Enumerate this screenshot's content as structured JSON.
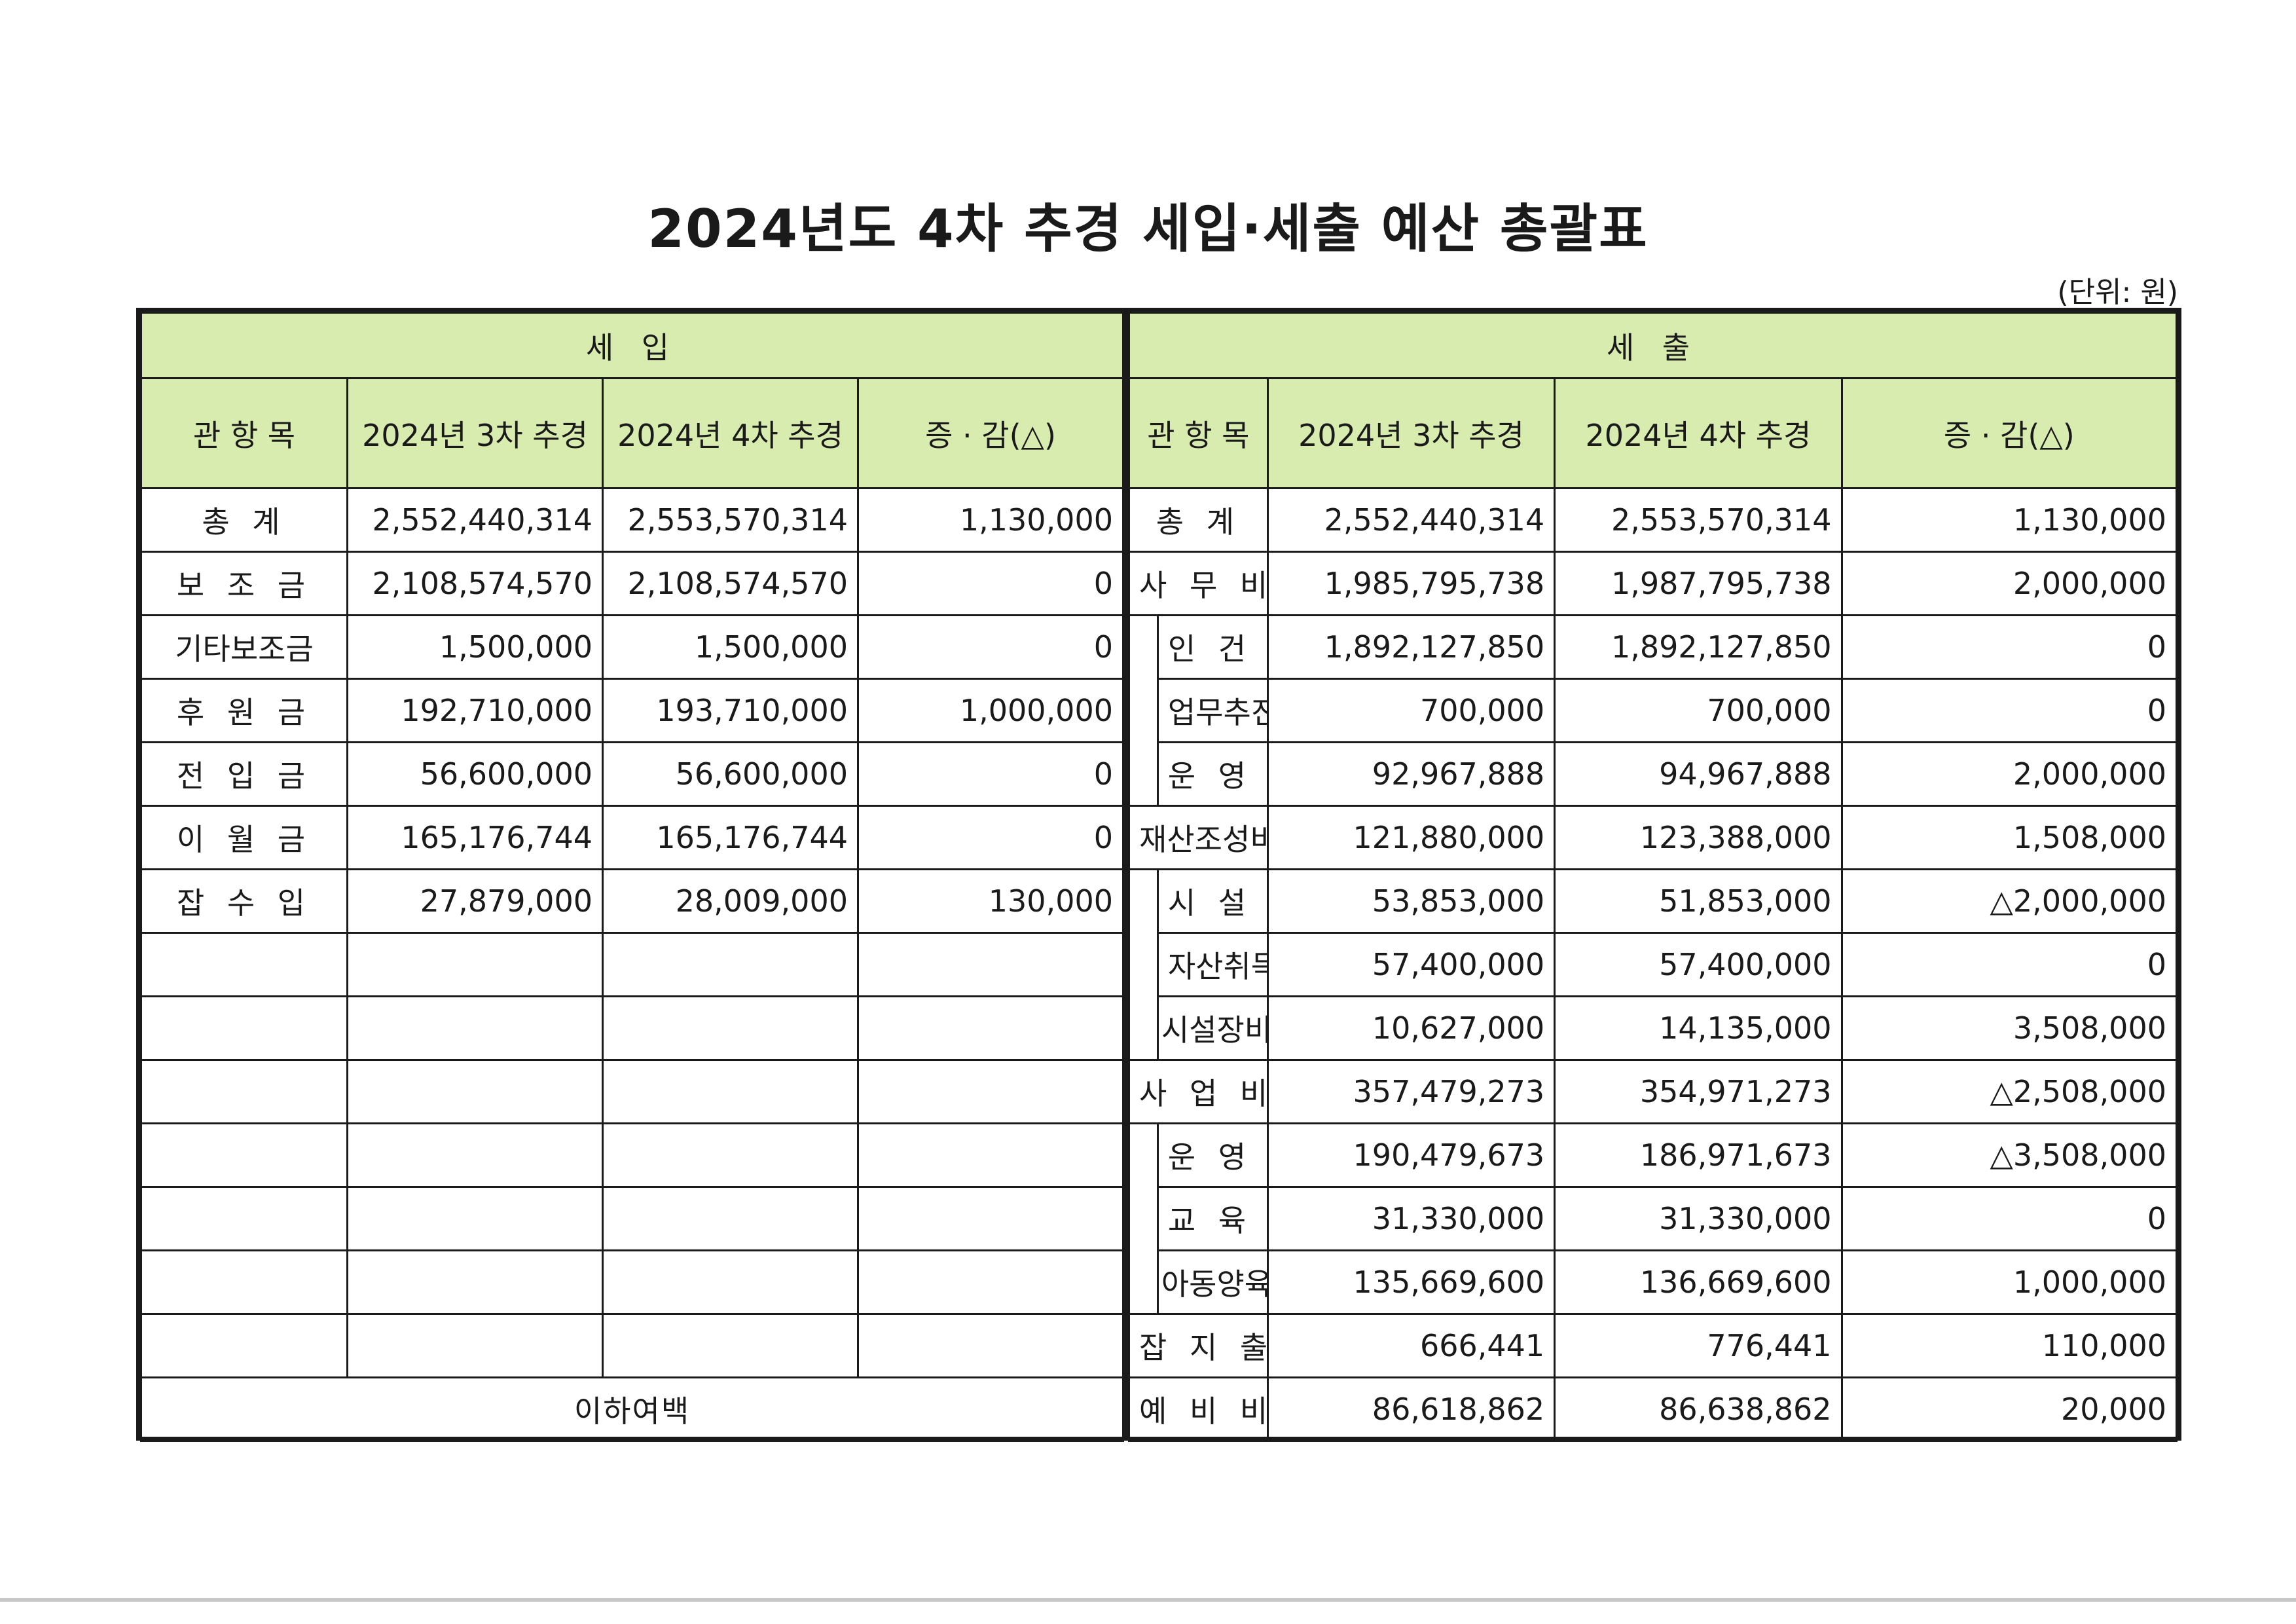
{
  "title": "2024년도 4차 추경 세입·세출 예산 총괄표",
  "unit": "(단위: 원)",
  "revenue": {
    "group_label": "세 입",
    "headers": [
      "관 항 목",
      "2024년 3차 추경",
      "2024년 4차 추경",
      "증 · 감(△)"
    ],
    "rows": [
      {
        "name": "총 계",
        "prev": "2,552,440,314",
        "curr": "2,553,570,314",
        "diff": "1,130,000"
      },
      {
        "name": "보 조 금",
        "prev": "2,108,574,570",
        "curr": "2,108,574,570",
        "diff": "0"
      },
      {
        "name": "기타보조금",
        "prev": "1,500,000",
        "curr": "1,500,000",
        "diff": "0"
      },
      {
        "name": "후 원 금",
        "prev": "192,710,000",
        "curr": "193,710,000",
        "diff": "1,000,000"
      },
      {
        "name": "전 입 금",
        "prev": "56,600,000",
        "curr": "56,600,000",
        "diff": "0"
      },
      {
        "name": "이 월 금",
        "prev": "165,176,744",
        "curr": "165,176,744",
        "diff": "0"
      },
      {
        "name": "잡 수 입",
        "prev": "27,879,000",
        "curr": "28,009,000",
        "diff": "130,000"
      }
    ],
    "footer": "이하여백"
  },
  "expenditure": {
    "group_label": "세 출",
    "headers": [
      "관 항 목",
      "2024년 3차 추경",
      "2024년 4차 추경",
      "증 · 감(△)"
    ],
    "rows": [
      {
        "name": "총 계",
        "prev": "2,552,440,314",
        "curr": "2,553,570,314",
        "diff": "1,130,000"
      },
      {
        "name": "사 무 비",
        "prev": "1,985,795,738",
        "curr": "1,987,795,738",
        "diff": "2,000,000"
      },
      {
        "name": "인 건 비",
        "prev": "1,892,127,850",
        "curr": "1,892,127,850",
        "diff": "0"
      },
      {
        "name": "업무추진비",
        "prev": "700,000",
        "curr": "700,000",
        "diff": "0"
      },
      {
        "name": "운 영 비",
        "prev": "92,967,888",
        "curr": "94,967,888",
        "diff": "2,000,000"
      },
      {
        "name": "재산조성비",
        "prev": "121,880,000",
        "curr": "123,388,000",
        "diff": "1,508,000"
      },
      {
        "name": "시 설 비",
        "prev": "53,853,000",
        "curr": "51,853,000",
        "diff": "△2,000,000"
      },
      {
        "name": "자산취득비",
        "prev": "57,400,000",
        "curr": "57,400,000",
        "diff": "0"
      },
      {
        "name": "시설장비유지비",
        "prev": "10,627,000",
        "curr": "14,135,000",
        "diff": "3,508,000"
      },
      {
        "name": "사 업 비",
        "prev": "357,479,273",
        "curr": "354,971,273",
        "diff": "△2,508,000"
      },
      {
        "name": "운 영 비",
        "prev": "190,479,673",
        "curr": "186,971,673",
        "diff": "△3,508,000"
      },
      {
        "name": "교 육 비",
        "prev": "31,330,000",
        "curr": "31,330,000",
        "diff": "0"
      },
      {
        "name": "아동양육사업비",
        "prev": "135,669,600",
        "curr": "136,669,600",
        "diff": "1,000,000"
      },
      {
        "name": "잡 지 출",
        "prev": "666,441",
        "curr": "776,441",
        "diff": "110,000"
      },
      {
        "name": "예 비 비",
        "prev": "86,618,862",
        "curr": "86,638,862",
        "diff": "20,000"
      }
    ]
  },
  "colors": {
    "header_background": "#d9ecb0",
    "border": "#1a1a1a"
  }
}
